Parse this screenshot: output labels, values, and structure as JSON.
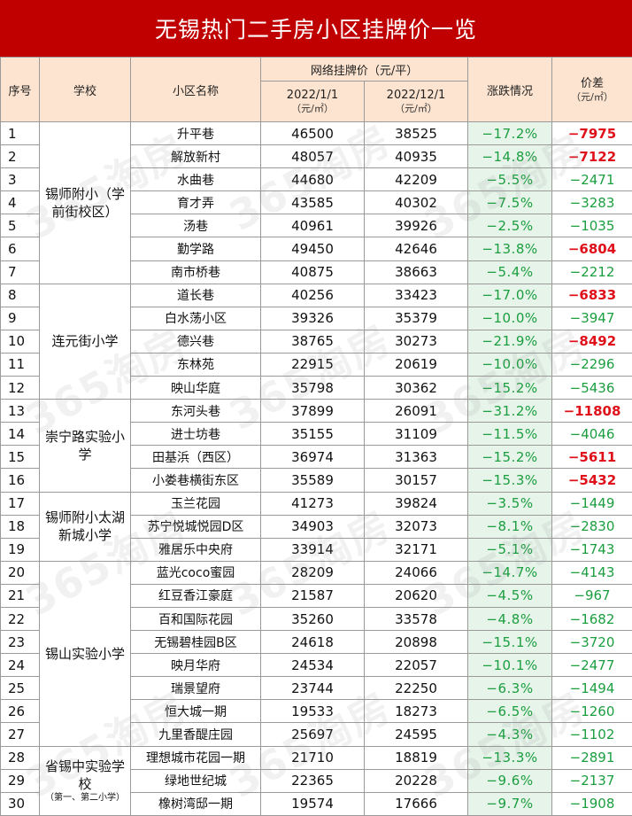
{
  "title": "无锡热门二手房小区挂牌价一览",
  "watermark": "365淘房",
  "header": {
    "idx": "序号",
    "school": "学校",
    "name": "小区名称",
    "price_group": "网络挂牌价（元/平）",
    "date1": "2022/1/1",
    "date2": "2022/12/1",
    "unit": "（元/㎡）",
    "change": "涨跌情况",
    "diff": "价差",
    "diff_unit": "（元/㎡）"
  },
  "schools": [
    {
      "name": "锡师附小（学前街校区）",
      "span": 7,
      "note": ""
    },
    {
      "name": "连元街小学",
      "span": 5,
      "note": ""
    },
    {
      "name": "崇宁路实验小学",
      "span": 4,
      "note": ""
    },
    {
      "name": "锡师附小太湖新城小学",
      "span": 3,
      "note": ""
    },
    {
      "name": "锡山实验小学",
      "span": 8,
      "note": ""
    },
    {
      "name": "省锡中实验学校",
      "span": 3,
      "note": "（第一、第二小学）"
    }
  ],
  "rows": [
    {
      "idx": "1",
      "name": "升平巷",
      "p1": "46500",
      "p2": "38525",
      "chg": "−17.2%",
      "diff": "−7975",
      "red": true
    },
    {
      "idx": "2",
      "name": "解放新村",
      "p1": "48057",
      "p2": "40935",
      "chg": "−14.8%",
      "diff": "−7122",
      "red": true
    },
    {
      "idx": "3",
      "name": "水曲巷",
      "p1": "44680",
      "p2": "42209",
      "chg": "−5.5%",
      "diff": "−2471",
      "red": false
    },
    {
      "idx": "4",
      "name": "育才弄",
      "p1": "43585",
      "p2": "40302",
      "chg": "−7.5%",
      "diff": "−3283",
      "red": false
    },
    {
      "idx": "5",
      "name": "汤巷",
      "p1": "40961",
      "p2": "39926",
      "chg": "−2.5%",
      "diff": "−1035",
      "red": false
    },
    {
      "idx": "6",
      "name": "勤学路",
      "p1": "49450",
      "p2": "42646",
      "chg": "−13.8%",
      "diff": "−6804",
      "red": true
    },
    {
      "idx": "7",
      "name": "南市桥巷",
      "p1": "40875",
      "p2": "38663",
      "chg": "−5.4%",
      "diff": "−2212",
      "red": false
    },
    {
      "idx": "8",
      "name": "道长巷",
      "p1": "40256",
      "p2": "33423",
      "chg": "−17.0%",
      "diff": "−6833",
      "red": true
    },
    {
      "idx": "9",
      "name": "白水荡小区",
      "p1": "39326",
      "p2": "35379",
      "chg": "−10.0%",
      "diff": "−3947",
      "red": false
    },
    {
      "idx": "10",
      "name": "德兴巷",
      "p1": "38765",
      "p2": "30273",
      "chg": "−21.9%",
      "diff": "−8492",
      "red": true
    },
    {
      "idx": "11",
      "name": "东林苑",
      "p1": "22915",
      "p2": "20619",
      "chg": "−10.0%",
      "diff": "−2296",
      "red": false
    },
    {
      "idx": "12",
      "name": "映山华庭",
      "p1": "35798",
      "p2": "30362",
      "chg": "−15.2%",
      "diff": "−5436",
      "red": false
    },
    {
      "idx": "13",
      "name": "东河头巷",
      "p1": "37899",
      "p2": "26091",
      "chg": "−31.2%",
      "diff": "−11808",
      "red": true
    },
    {
      "idx": "14",
      "name": "进士坊巷",
      "p1": "35155",
      "p2": "31109",
      "chg": "−11.5%",
      "diff": "−4046",
      "red": false
    },
    {
      "idx": "15",
      "name": "田基浜（西区）",
      "p1": "36974",
      "p2": "31363",
      "chg": "−15.2%",
      "diff": "−5611",
      "red": true
    },
    {
      "idx": "16",
      "name": "小娄巷横街东区",
      "p1": "35589",
      "p2": "30157",
      "chg": "−15.3%",
      "diff": "−5432",
      "red": true
    },
    {
      "idx": "17",
      "name": "玉兰花园",
      "p1": "41273",
      "p2": "39824",
      "chg": "−3.5%",
      "diff": "−1449",
      "red": false
    },
    {
      "idx": "18",
      "name": "苏宁悦城悦园D区",
      "p1": "34903",
      "p2": "32073",
      "chg": "−8.1%",
      "diff": "−2830",
      "red": false
    },
    {
      "idx": "19",
      "name": "雅居乐中央府",
      "p1": "33914",
      "p2": "32171",
      "chg": "−5.1%",
      "diff": "−1743",
      "red": false
    },
    {
      "idx": "20",
      "name": "蓝光coco蜜园",
      "p1": "28209",
      "p2": "24066",
      "chg": "−14.7%",
      "diff": "−4143",
      "red": false
    },
    {
      "idx": "21",
      "name": "红豆香江豪庭",
      "p1": "21587",
      "p2": "20620",
      "chg": "−4.5%",
      "diff": "−967",
      "red": false
    },
    {
      "idx": "22",
      "name": "百和国际花园",
      "p1": "35260",
      "p2": "33578",
      "chg": "−4.8%",
      "diff": "−1682",
      "red": false
    },
    {
      "idx": "23",
      "name": "无锡碧桂园B区",
      "p1": "24618",
      "p2": "20898",
      "chg": "−15.1%",
      "diff": "−3720",
      "red": false
    },
    {
      "idx": "24",
      "name": "映月华府",
      "p1": "24534",
      "p2": "22057",
      "chg": "−10.1%",
      "diff": "−2477",
      "red": false
    },
    {
      "idx": "25",
      "name": "瑞景望府",
      "p1": "23744",
      "p2": "22250",
      "chg": "−6.3%",
      "diff": "−1494",
      "red": false
    },
    {
      "idx": "26",
      "name": "恒大城一期",
      "p1": "19533",
      "p2": "18273",
      "chg": "−6.5%",
      "diff": "−1260",
      "red": false
    },
    {
      "idx": "27",
      "name": "九里香醍庄园",
      "p1": "25697",
      "p2": "24595",
      "chg": "−4.3%",
      "diff": "−1102",
      "red": false
    },
    {
      "idx": "28",
      "name": "理想城市花园一期",
      "p1": "21710",
      "p2": "18819",
      "chg": "−13.3%",
      "diff": "−2891",
      "red": false
    },
    {
      "idx": "29",
      "name": "绿地世纪城",
      "p1": "22365",
      "p2": "20228",
      "chg": "−9.6%",
      "diff": "−2137",
      "red": false
    },
    {
      "idx": "30",
      "name": "橡树湾邸一期",
      "p1": "19574",
      "p2": "17666",
      "chg": "−9.7%",
      "diff": "−1908",
      "red": false
    }
  ]
}
